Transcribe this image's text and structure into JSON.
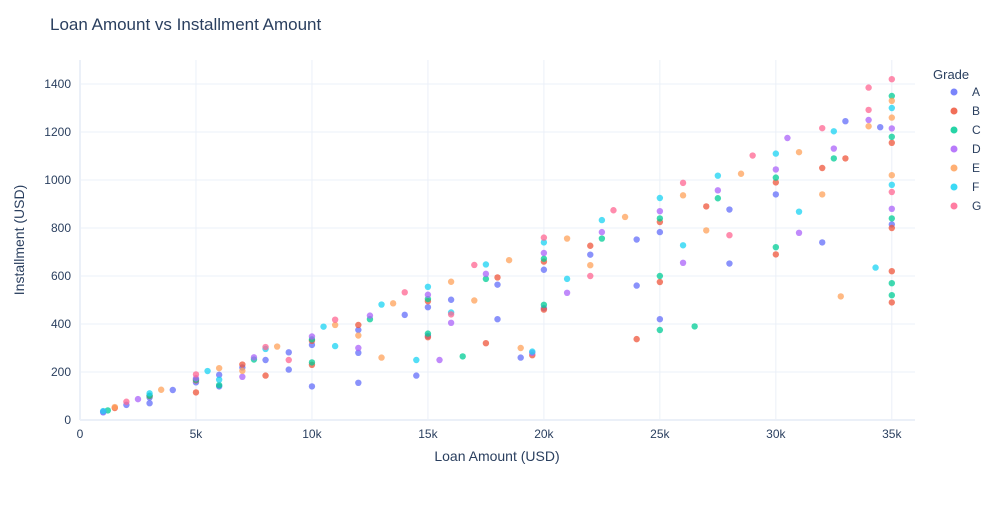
{
  "chart_data": {
    "type": "scatter",
    "title": "Loan Amount vs Installment Amount",
    "xlabel": "Loan Amount (USD)",
    "ylabel": "Installment (USD)",
    "xlim": [
      0,
      36000
    ],
    "ylim": [
      0,
      1500
    ],
    "x_ticks": [
      0,
      5000,
      10000,
      15000,
      20000,
      25000,
      30000,
      35000
    ],
    "x_tick_labels": [
      "0",
      "5k",
      "10k",
      "15k",
      "20k",
      "25k",
      "30k",
      "35k"
    ],
    "y_ticks": [
      0,
      200,
      400,
      600,
      800,
      1000,
      1200,
      1400
    ],
    "y_tick_labels": [
      "0",
      "200",
      "400",
      "600",
      "800",
      "1000",
      "1200",
      "1400"
    ],
    "grid": true,
    "legend": {
      "title": "Grade",
      "placement": "right"
    },
    "series": [
      {
        "name": "A",
        "color": "#636efa",
        "points": [
          [
            1000,
            32
          ],
          [
            2000,
            63
          ],
          [
            3000,
            94
          ],
          [
            4000,
            125
          ],
          [
            5000,
            157
          ],
          [
            6000,
            188
          ],
          [
            7000,
            219
          ],
          [
            8000,
            250
          ],
          [
            9000,
            282
          ],
          [
            10000,
            313
          ],
          [
            12000,
            375
          ],
          [
            14000,
            438
          ],
          [
            15000,
            470
          ],
          [
            16000,
            501
          ],
          [
            18000,
            564
          ],
          [
            20000,
            626
          ],
          [
            22000,
            689
          ],
          [
            24000,
            752
          ],
          [
            25000,
            783
          ],
          [
            28000,
            877
          ],
          [
            30000,
            940
          ],
          [
            3000,
            70
          ],
          [
            6000,
            140
          ],
          [
            9000,
            210
          ],
          [
            12000,
            280
          ],
          [
            15000,
            350
          ],
          [
            18000,
            420
          ],
          [
            20000,
            466
          ],
          [
            24000,
            560
          ],
          [
            28000,
            652
          ],
          [
            32000,
            740
          ],
          [
            35000,
            815
          ],
          [
            10000,
            140
          ],
          [
            12000,
            155
          ],
          [
            14500,
            185
          ],
          [
            19000,
            260
          ],
          [
            25000,
            420
          ],
          [
            33000,
            1245
          ],
          [
            34500,
            1220
          ]
        ]
      },
      {
        "name": "B",
        "color": "#ef553b",
        "points": [
          [
            1500,
            50
          ],
          [
            3000,
            100
          ],
          [
            5000,
            165
          ],
          [
            7000,
            231
          ],
          [
            10000,
            330
          ],
          [
            12000,
            396
          ],
          [
            15000,
            495
          ],
          [
            18000,
            594
          ],
          [
            20000,
            660
          ],
          [
            22000,
            726
          ],
          [
            25000,
            825
          ],
          [
            27000,
            890
          ],
          [
            30000,
            990
          ],
          [
            33000,
            1090
          ],
          [
            35000,
            1155
          ],
          [
            5000,
            115
          ],
          [
            8000,
            185
          ],
          [
            10000,
            230
          ],
          [
            15000,
            345
          ],
          [
            20000,
            460
          ],
          [
            25000,
            575
          ],
          [
            30000,
            690
          ],
          [
            35000,
            800
          ],
          [
            35000,
            490
          ],
          [
            35000,
            620
          ],
          [
            19500,
            270
          ],
          [
            24000,
            337
          ],
          [
            17500,
            320
          ],
          [
            32000,
            1050
          ]
        ]
      },
      {
        "name": "C",
        "color": "#00cc96",
        "points": [
          [
            1200,
            40
          ],
          [
            3000,
            101
          ],
          [
            5000,
            168
          ],
          [
            7500,
            252
          ],
          [
            10000,
            336
          ],
          [
            12500,
            420
          ],
          [
            15000,
            504
          ],
          [
            17500,
            588
          ],
          [
            20000,
            672
          ],
          [
            22500,
            756
          ],
          [
            25000,
            840
          ],
          [
            27500,
            924
          ],
          [
            30000,
            1010
          ],
          [
            32500,
            1090
          ],
          [
            35000,
            1180
          ],
          [
            6000,
            145
          ],
          [
            10000,
            240
          ],
          [
            15000,
            360
          ],
          [
            20000,
            480
          ],
          [
            25000,
            600
          ],
          [
            30000,
            720
          ],
          [
            35000,
            840
          ],
          [
            35000,
            1350
          ],
          [
            35000,
            520
          ],
          [
            35000,
            570
          ],
          [
            25000,
            375
          ],
          [
            26500,
            390
          ],
          [
            16500,
            265
          ]
        ]
      },
      {
        "name": "D",
        "color": "#ab63fa",
        "points": [
          [
            1000,
            35
          ],
          [
            2500,
            87
          ],
          [
            5000,
            174
          ],
          [
            7500,
            261
          ],
          [
            10000,
            348
          ],
          [
            12500,
            435
          ],
          [
            15000,
            522
          ],
          [
            17500,
            609
          ],
          [
            20000,
            696
          ],
          [
            22500,
            783
          ],
          [
            25000,
            870
          ],
          [
            27500,
            957
          ],
          [
            30000,
            1044
          ],
          [
            32500,
            1131
          ],
          [
            35000,
            1215
          ],
          [
            7000,
            180
          ],
          [
            12000,
            300
          ],
          [
            16000,
            405
          ],
          [
            21000,
            530
          ],
          [
            26000,
            655
          ],
          [
            31000,
            780
          ],
          [
            35000,
            880
          ],
          [
            34000,
            1250
          ],
          [
            30500,
            1175
          ],
          [
            19500,
            280
          ],
          [
            15500,
            250
          ]
        ]
      },
      {
        "name": "E",
        "color": "#ffa15a",
        "points": [
          [
            1500,
            54
          ],
          [
            3500,
            126
          ],
          [
            6000,
            216
          ],
          [
            8500,
            306
          ],
          [
            11000,
            396
          ],
          [
            13500,
            486
          ],
          [
            16000,
            576
          ],
          [
            18500,
            666
          ],
          [
            21000,
            756
          ],
          [
            23500,
            846
          ],
          [
            26000,
            936
          ],
          [
            28500,
            1026
          ],
          [
            31000,
            1116
          ],
          [
            34000,
            1224
          ],
          [
            35000,
            1260
          ],
          [
            7000,
            205
          ],
          [
            12000,
            352
          ],
          [
            17000,
            498
          ],
          [
            22000,
            645
          ],
          [
            27000,
            790
          ],
          [
            32000,
            940
          ],
          [
            35000,
            1020
          ],
          [
            32800,
            515
          ],
          [
            35000,
            1330
          ],
          [
            19000,
            300
          ],
          [
            13000,
            260
          ]
        ]
      },
      {
        "name": "F",
        "color": "#19d3f3",
        "points": [
          [
            1000,
            37
          ],
          [
            3000,
            111
          ],
          [
            5500,
            204
          ],
          [
            8000,
            296
          ],
          [
            10500,
            389
          ],
          [
            13000,
            481
          ],
          [
            15000,
            555
          ],
          [
            17500,
            648
          ],
          [
            20000,
            740
          ],
          [
            22500,
            833
          ],
          [
            25000,
            925
          ],
          [
            27500,
            1018
          ],
          [
            30000,
            1110
          ],
          [
            32500,
            1203
          ],
          [
            35000,
            1300
          ],
          [
            6000,
            168
          ],
          [
            11000,
            308
          ],
          [
            16000,
            448
          ],
          [
            21000,
            588
          ],
          [
            26000,
            728
          ],
          [
            31000,
            868
          ],
          [
            35000,
            980
          ],
          [
            34300,
            635
          ],
          [
            14500,
            250
          ],
          [
            19500,
            285
          ]
        ]
      },
      {
        "name": "G",
        "color": "#ff6692",
        "points": [
          [
            2000,
            76
          ],
          [
            5000,
            190
          ],
          [
            8000,
            304
          ],
          [
            11000,
            418
          ],
          [
            14000,
            532
          ],
          [
            17000,
            646
          ],
          [
            20000,
            760
          ],
          [
            23000,
            874
          ],
          [
            26000,
            988
          ],
          [
            29000,
            1102
          ],
          [
            32000,
            1216
          ],
          [
            34000,
            1292
          ],
          [
            35000,
            1420
          ],
          [
            34000,
            1385
          ],
          [
            9000,
            250
          ],
          [
            16000,
            440
          ],
          [
            22000,
            600
          ],
          [
            28000,
            770
          ],
          [
            35000,
            950
          ]
        ]
      }
    ]
  }
}
